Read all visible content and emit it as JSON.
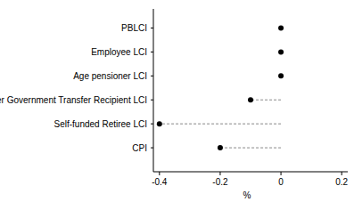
{
  "chart_data": {
    "type": "dot",
    "orientation": "horizontal",
    "categories": [
      "PBLCI",
      "Employee LCI",
      "Age pensioner LCI",
      "Other Government Transfer Recipient LCI",
      "Self-funded Retiree LCI",
      "CPI"
    ],
    "values": [
      0,
      0,
      0,
      -0.1,
      -0.4,
      -0.2
    ],
    "color": "#000000",
    "marker": "circle",
    "line_style": "dashed",
    "x_label": "%",
    "xlim": [
      -0.42,
      0.22
    ],
    "xticks": [
      -0.4,
      -0.2,
      0,
      0.2
    ]
  }
}
